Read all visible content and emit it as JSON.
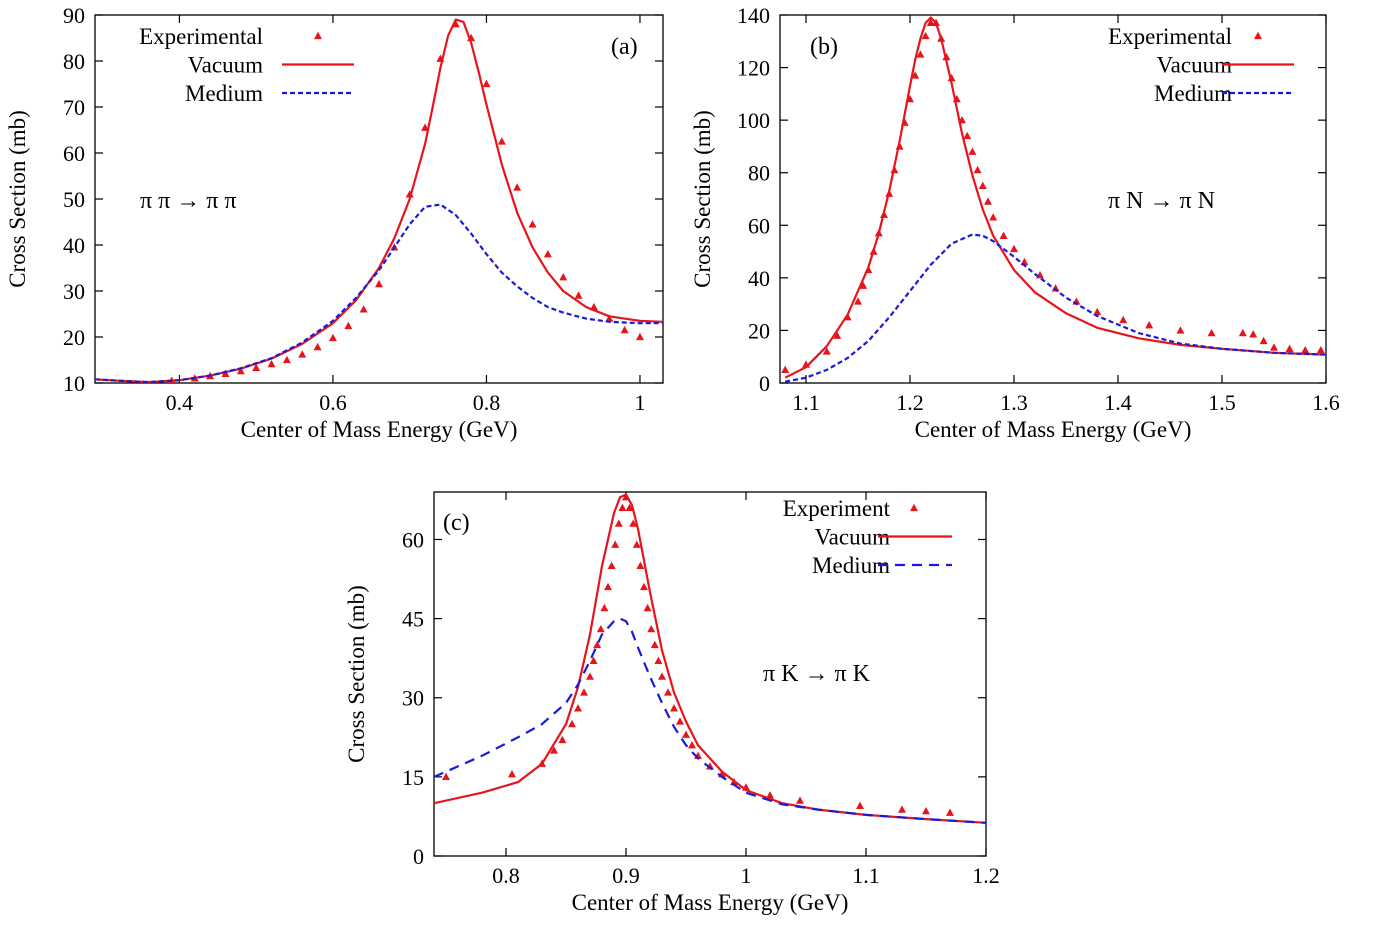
{
  "chart_data": [
    {
      "type": "scatter",
      "panel_label": "(a)",
      "annotation": "π π → π π",
      "xlabel": "Center of Mass Energy (GeV)",
      "ylabel": "Cross Section (mb)",
      "xlim": [
        0.29,
        1.03
      ],
      "ylim": [
        10,
        90
      ],
      "xticks": [
        0.4,
        0.6,
        0.8,
        1
      ],
      "xtick_labels": [
        "0.4",
        "0.6",
        "0.8",
        "1"
      ],
      "yticks": [
        10,
        20,
        30,
        40,
        50,
        60,
        70,
        80,
        90
      ],
      "ytick_labels": [
        "10",
        "20",
        "30",
        "40",
        "50",
        "60",
        "70",
        "80",
        "90"
      ],
      "legend_position": "top-left",
      "series": [
        {
          "name": "Experimental",
          "kind": "markers",
          "color": "#e8141b",
          "x": [
            0.39,
            0.42,
            0.44,
            0.46,
            0.48,
            0.5,
            0.52,
            0.54,
            0.56,
            0.58,
            0.6,
            0.62,
            0.64,
            0.66,
            0.68,
            0.7,
            0.72,
            0.74,
            0.76,
            0.78,
            0.8,
            0.82,
            0.84,
            0.86,
            0.88,
            0.9,
            0.92,
            0.94,
            0.96,
            0.98,
            1.0
          ],
          "y": [
            10.5,
            11.0,
            11.5,
            12.0,
            12.6,
            13.3,
            14.1,
            15.0,
            16.2,
            17.8,
            19.8,
            22.4,
            26.0,
            31.5,
            39.5,
            51.0,
            65.5,
            80.5,
            88.0,
            85.0,
            75.0,
            62.5,
            52.5,
            44.5,
            38.0,
            33.0,
            29.0,
            26.5,
            24.0,
            21.5,
            20.0
          ]
        },
        {
          "name": "Vacuum",
          "kind": "line",
          "color": "#e8141b",
          "x": [
            0.29,
            0.32,
            0.36,
            0.4,
            0.44,
            0.48,
            0.52,
            0.56,
            0.6,
            0.63,
            0.66,
            0.68,
            0.7,
            0.72,
            0.73,
            0.74,
            0.75,
            0.76,
            0.77,
            0.78,
            0.79,
            0.8,
            0.82,
            0.84,
            0.86,
            0.88,
            0.9,
            0.93,
            0.96,
            1.0,
            1.03
          ],
          "y": [
            10.8,
            10.5,
            10.2,
            10.6,
            11.6,
            13.1,
            15.3,
            18.5,
            23.0,
            28.0,
            35.0,
            41.5,
            50.0,
            62.0,
            70.0,
            78.5,
            85.5,
            89.0,
            88.5,
            84.0,
            77.5,
            70.5,
            57.5,
            47.0,
            39.5,
            34.0,
            30.0,
            26.5,
            24.5,
            23.5,
            23.3
          ]
        },
        {
          "name": "Medium",
          "kind": "dashed-line",
          "color": "#1a1adb",
          "x": [
            0.29,
            0.32,
            0.36,
            0.4,
            0.44,
            0.48,
            0.52,
            0.56,
            0.6,
            0.63,
            0.66,
            0.68,
            0.7,
            0.72,
            0.74,
            0.76,
            0.78,
            0.8,
            0.82,
            0.84,
            0.86,
            0.88,
            0.9,
            0.93,
            0.96,
            1.0,
            1.03
          ],
          "y": [
            10.8,
            10.5,
            10.2,
            10.6,
            11.6,
            13.2,
            15.4,
            18.8,
            23.5,
            28.5,
            34.5,
            39.5,
            44.5,
            48.3,
            48.8,
            46.5,
            42.5,
            38.0,
            34.0,
            31.0,
            28.5,
            26.5,
            25.3,
            24.0,
            23.3,
            23.0,
            23.0
          ]
        }
      ]
    },
    {
      "type": "scatter",
      "panel_label": "(b)",
      "annotation": "π N → π N",
      "xlabel": "Center of Mass Energy (GeV)",
      "ylabel": "Cross Section (mb)",
      "xlim": [
        1.075,
        1.6
      ],
      "ylim": [
        0,
        140
      ],
      "xticks": [
        1.1,
        1.2,
        1.3,
        1.4,
        1.5,
        1.6
      ],
      "xtick_labels": [
        "1.1",
        "1.2",
        "1.3",
        "1.4",
        "1.5",
        "1.6"
      ],
      "yticks": [
        0,
        20,
        40,
        60,
        80,
        100,
        120,
        140
      ],
      "ytick_labels": [
        "0",
        "20",
        "40",
        "60",
        "80",
        "100",
        "120",
        "140"
      ],
      "legend_position": "top-right",
      "series": [
        {
          "name": "Experimental",
          "kind": "markers",
          "color": "#e8141b",
          "x": [
            1.08,
            1.1,
            1.12,
            1.13,
            1.14,
            1.15,
            1.155,
            1.16,
            1.165,
            1.17,
            1.175,
            1.18,
            1.185,
            1.19,
            1.195,
            1.2,
            1.205,
            1.21,
            1.215,
            1.22,
            1.225,
            1.23,
            1.235,
            1.24,
            1.245,
            1.25,
            1.255,
            1.26,
            1.265,
            1.27,
            1.275,
            1.28,
            1.29,
            1.3,
            1.31,
            1.325,
            1.34,
            1.36,
            1.38,
            1.405,
            1.43,
            1.46,
            1.49,
            1.52,
            1.53,
            1.54,
            1.55,
            1.565,
            1.58,
            1.595
          ],
          "y": [
            5.0,
            7.0,
            12.0,
            18.0,
            25.0,
            31.0,
            37.0,
            43.0,
            50.0,
            57.0,
            64.0,
            72.0,
            81.0,
            90.0,
            99.0,
            108.0,
            117.0,
            125.0,
            132.0,
            137.0,
            137.0,
            131.0,
            124.0,
            116.0,
            108.0,
            100.0,
            94.0,
            88.0,
            81.0,
            75.0,
            69.0,
            63.0,
            56.0,
            51.0,
            46.0,
            41.0,
            36.0,
            31.0,
            27.0,
            24.0,
            22.0,
            20.0,
            19.0,
            19.0,
            18.5,
            16.0,
            13.5,
            13.0,
            12.5,
            12.5
          ]
        },
        {
          "name": "Vacuum",
          "kind": "line",
          "color": "#e8141b",
          "x": [
            1.08,
            1.1,
            1.12,
            1.14,
            1.16,
            1.17,
            1.18,
            1.19,
            1.2,
            1.205,
            1.21,
            1.215,
            1.22,
            1.225,
            1.23,
            1.24,
            1.25,
            1.26,
            1.27,
            1.28,
            1.3,
            1.32,
            1.35,
            1.38,
            1.42,
            1.46,
            1.5,
            1.55,
            1.6
          ],
          "y": [
            2.0,
            6.0,
            14.0,
            26.0,
            44.0,
            57.0,
            73.0,
            92.0,
            113.0,
            123.0,
            131.0,
            137.0,
            139.0,
            137.0,
            131.0,
            114.0,
            95.0,
            79.0,
            66.0,
            56.0,
            43.0,
            34.5,
            26.5,
            21.0,
            17.0,
            14.5,
            13.0,
            11.5,
            10.8
          ]
        },
        {
          "name": "Medium",
          "kind": "dashed-line",
          "color": "#1a1adb",
          "x": [
            1.08,
            1.1,
            1.12,
            1.14,
            1.16,
            1.18,
            1.2,
            1.22,
            1.24,
            1.26,
            1.27,
            1.28,
            1.3,
            1.32,
            1.35,
            1.38,
            1.42,
            1.46,
            1.5,
            1.55,
            1.6
          ],
          "y": [
            0.5,
            2.0,
            5.0,
            9.5,
            16.0,
            25.0,
            35.0,
            45.0,
            53.0,
            56.5,
            56.0,
            54.0,
            48.0,
            41.5,
            32.5,
            25.5,
            19.0,
            15.0,
            13.0,
            11.5,
            10.8
          ]
        }
      ]
    },
    {
      "type": "scatter",
      "panel_label": "(c)",
      "annotation": "π K → π K",
      "xlabel": "Center of Mass Energy (GeV)",
      "ylabel": "Cross Section (mb)",
      "xlim": [
        0.74,
        1.2
      ],
      "ylim": [
        0,
        69
      ],
      "xticks": [
        0.8,
        0.9,
        1.0,
        1.1,
        1.2
      ],
      "xtick_labels": [
        "0.8",
        "0.9",
        "1",
        "1.1",
        "1.2"
      ],
      "yticks": [
        0,
        15,
        30,
        45,
        60
      ],
      "ytick_labels": [
        "0",
        "15",
        "30",
        "45",
        "60"
      ],
      "legend_position": "top-right",
      "series": [
        {
          "name": "Experiment",
          "kind": "markers",
          "color": "#e8141b",
          "x": [
            0.75,
            0.805,
            0.83,
            0.84,
            0.847,
            0.855,
            0.86,
            0.865,
            0.87,
            0.873,
            0.876,
            0.879,
            0.882,
            0.885,
            0.888,
            0.891,
            0.894,
            0.897,
            0.9,
            0.903,
            0.906,
            0.909,
            0.912,
            0.915,
            0.918,
            0.921,
            0.924,
            0.927,
            0.93,
            0.935,
            0.94,
            0.945,
            0.95,
            0.955,
            0.96,
            0.97,
            0.98,
            0.99,
            1.0,
            1.02,
            1.045,
            1.095,
            1.13,
            1.15,
            1.17
          ],
          "y": [
            15.0,
            15.5,
            17.5,
            20.0,
            22.0,
            25.0,
            28.0,
            31.0,
            34.0,
            37.0,
            40.0,
            43.0,
            47.0,
            51.0,
            55.0,
            59.0,
            63.0,
            66.0,
            68.0,
            66.0,
            63.0,
            59.0,
            55.0,
            51.0,
            47.0,
            43.0,
            40.0,
            37.0,
            34.0,
            31.0,
            28.0,
            25.5,
            23.0,
            21.0,
            19.0,
            17.0,
            15.5,
            14.0,
            13.0,
            11.5,
            10.5,
            9.5,
            8.8,
            8.5,
            8.2
          ]
        },
        {
          "name": "Vacuum",
          "kind": "line",
          "color": "#e8141b",
          "x": [
            0.74,
            0.78,
            0.81,
            0.83,
            0.85,
            0.86,
            0.87,
            0.88,
            0.89,
            0.895,
            0.9,
            0.905,
            0.91,
            0.92,
            0.93,
            0.94,
            0.95,
            0.96,
            0.98,
            1.0,
            1.03,
            1.06,
            1.1,
            1.15,
            1.2
          ],
          "y": [
            10.0,
            12.0,
            14.0,
            17.5,
            25.0,
            32.0,
            42.0,
            55.0,
            65.0,
            68.0,
            68.5,
            66.5,
            62.0,
            50.0,
            39.0,
            31.0,
            25.5,
            21.0,
            16.0,
            12.5,
            10.0,
            8.8,
            7.8,
            7.0,
            6.3
          ]
        },
        {
          "name": "Medium",
          "kind": "dashed-line",
          "color": "#1a1adb",
          "x": [
            0.74,
            0.78,
            0.81,
            0.83,
            0.85,
            0.86,
            0.87,
            0.88,
            0.89,
            0.895,
            0.9,
            0.905,
            0.91,
            0.92,
            0.93,
            0.94,
            0.95,
            0.96,
            0.98,
            1.0,
            1.03,
            1.06,
            1.1,
            1.15,
            1.2
          ],
          "y": [
            15.0,
            19.0,
            22.5,
            25.0,
            29.0,
            32.5,
            37.0,
            42.0,
            44.5,
            45.0,
            44.5,
            42.5,
            39.5,
            34.0,
            29.0,
            24.5,
            21.0,
            18.5,
            15.0,
            12.0,
            9.8,
            8.8,
            7.8,
            7.0,
            6.3
          ]
        }
      ]
    }
  ]
}
